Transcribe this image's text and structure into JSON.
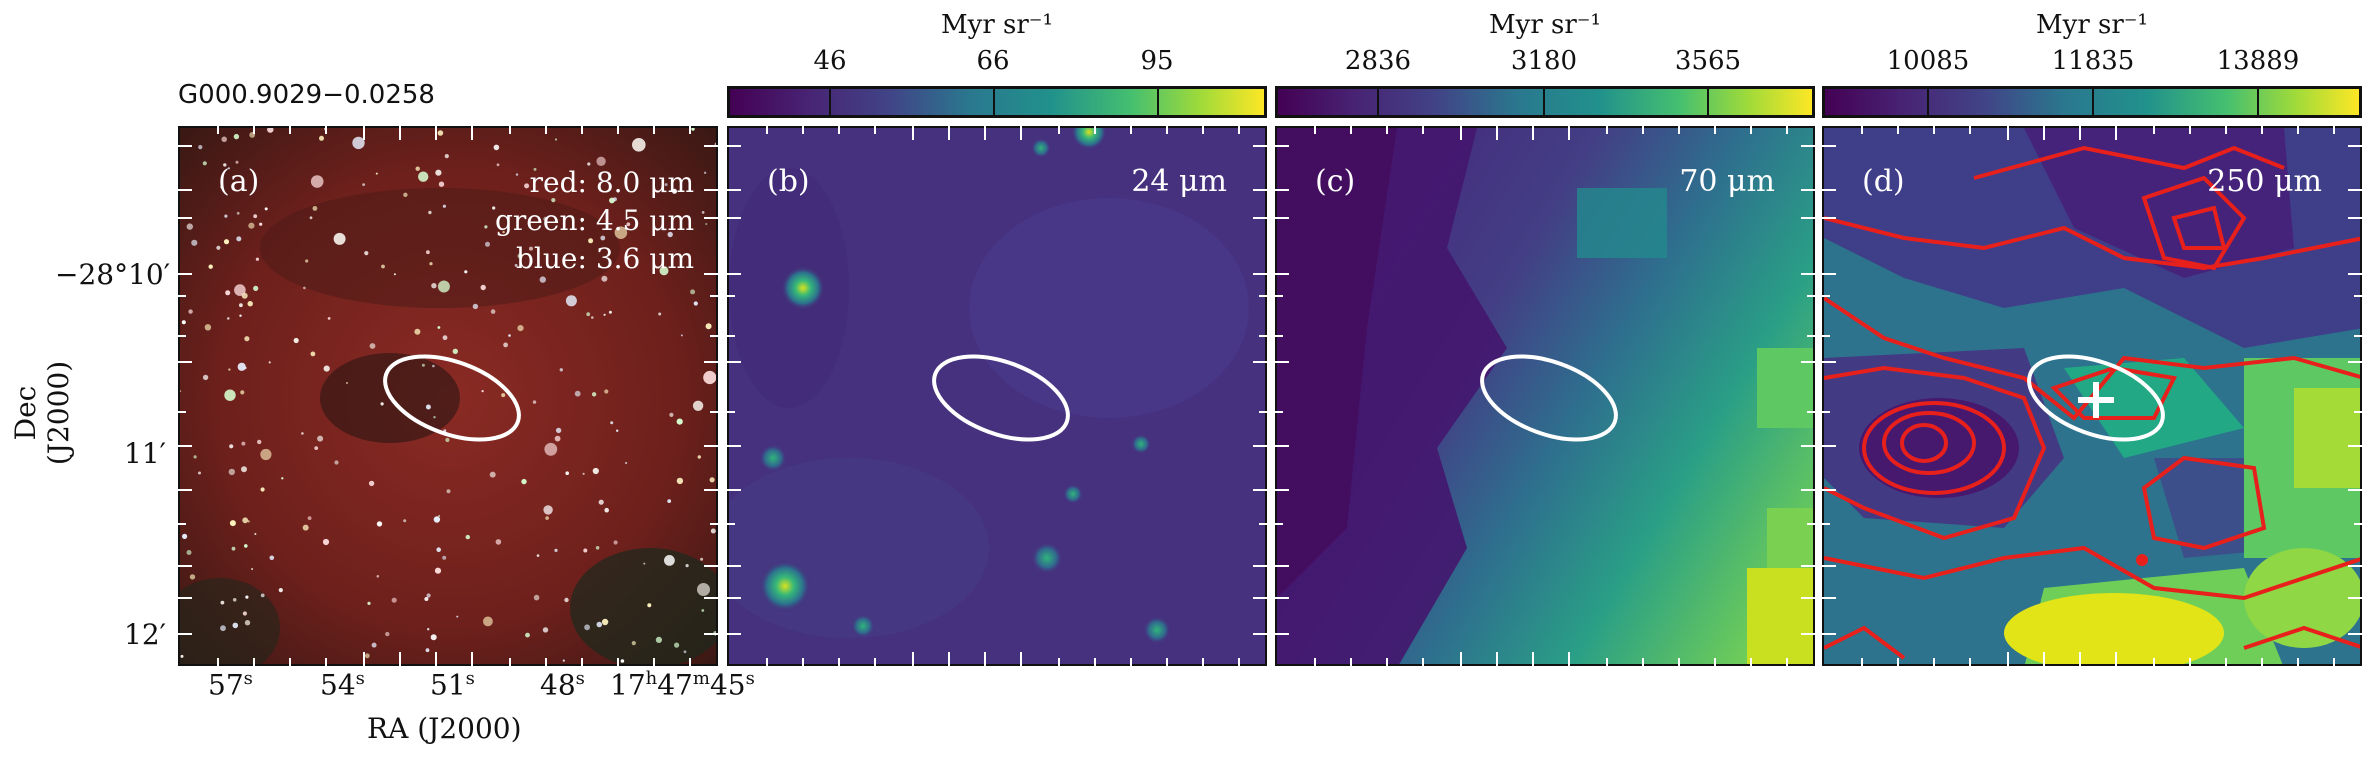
{
  "figure": {
    "source_name": "G000.9029−0.0258",
    "x_axis_label": "RA (J2000)",
    "y_axis_label": "Dec (J2000)",
    "ra_ticks": [
      {
        "value": "57",
        "unit": "s"
      },
      {
        "value": "54",
        "unit": "s"
      },
      {
        "value": "51",
        "unit": "s"
      },
      {
        "value": "48",
        "unit": "s"
      },
      {
        "value": "17h47m45",
        "unit": "s",
        "h": "17",
        "m": "47",
        "s": "45"
      }
    ],
    "dec_ticks": [
      "−28°10′",
      "11′",
      "12′"
    ]
  },
  "panels": [
    {
      "id": "a",
      "label": "(a)",
      "legend": [
        "red: 8.0 μm",
        "green: 4.5 μm",
        "blue: 3.6 μm"
      ]
    },
    {
      "id": "b",
      "label": "(b)",
      "wavelength": "24 μm",
      "cbar_unit": "Myr sr⁻¹",
      "cbar_ticks": [
        "46",
        "66",
        "95"
      ]
    },
    {
      "id": "c",
      "label": "(c)",
      "wavelength": "70 μm",
      "cbar_unit": "Myr sr⁻¹",
      "cbar_ticks": [
        "2836",
        "3180",
        "3565"
      ]
    },
    {
      "id": "d",
      "label": "(d)",
      "wavelength": "250 μm",
      "cbar_unit": "Myr sr⁻¹",
      "cbar_ticks": [
        "10085",
        "11835",
        "13889"
      ]
    }
  ],
  "colors": {
    "viridis_dark": "#440154",
    "viridis_mid": "#21918c",
    "viridis_light": "#fde725",
    "contour": "#e8201c",
    "ellipse": "#ffffff"
  }
}
